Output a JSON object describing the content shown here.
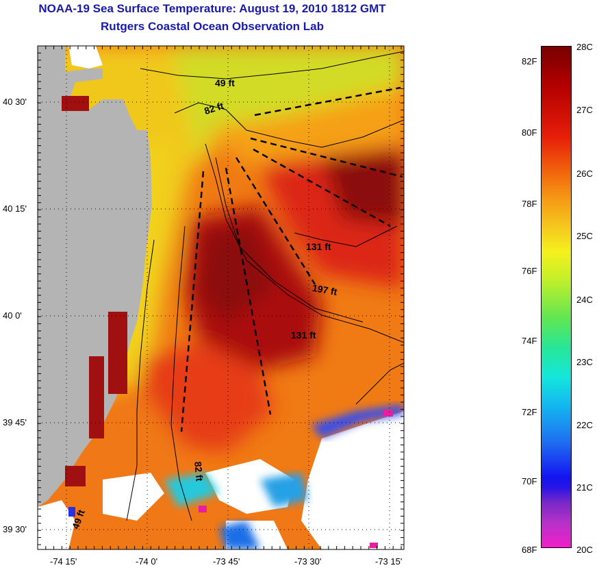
{
  "header": {
    "title": "NOAA-19 Sea Surface Temperature:  August 19, 2010 1812 GMT",
    "subtitle": "Rutgers Coastal Ocean Observation Lab"
  },
  "map": {
    "lat_labels": [
      "40 30'",
      "40 15'",
      "40 0'",
      "39 45'",
      "39 30'"
    ],
    "lon_labels": [
      "-74 15'",
      "-74 0'",
      "-73 45'",
      "-73 30'",
      "-73 15'"
    ],
    "depth_labels": [
      "49 ft",
      "82 ft",
      "131 ft",
      "197 ft",
      "131 ft",
      "82 ft",
      "49 ft"
    ],
    "colors": {
      "land": "#b4b4b4",
      "cloud": "#ffffff",
      "warm_core": "#8b0a0a",
      "coast_band": "#f5e61e"
    }
  },
  "colorbar": {
    "f_labels": [
      "82F",
      "80F",
      "78F",
      "76F",
      "74F",
      "72F",
      "70F",
      "68F"
    ],
    "c_labels": [
      "28C",
      "27C",
      "26C",
      "25C",
      "24C",
      "23C",
      "22C",
      "21C",
      "20C"
    ]
  }
}
